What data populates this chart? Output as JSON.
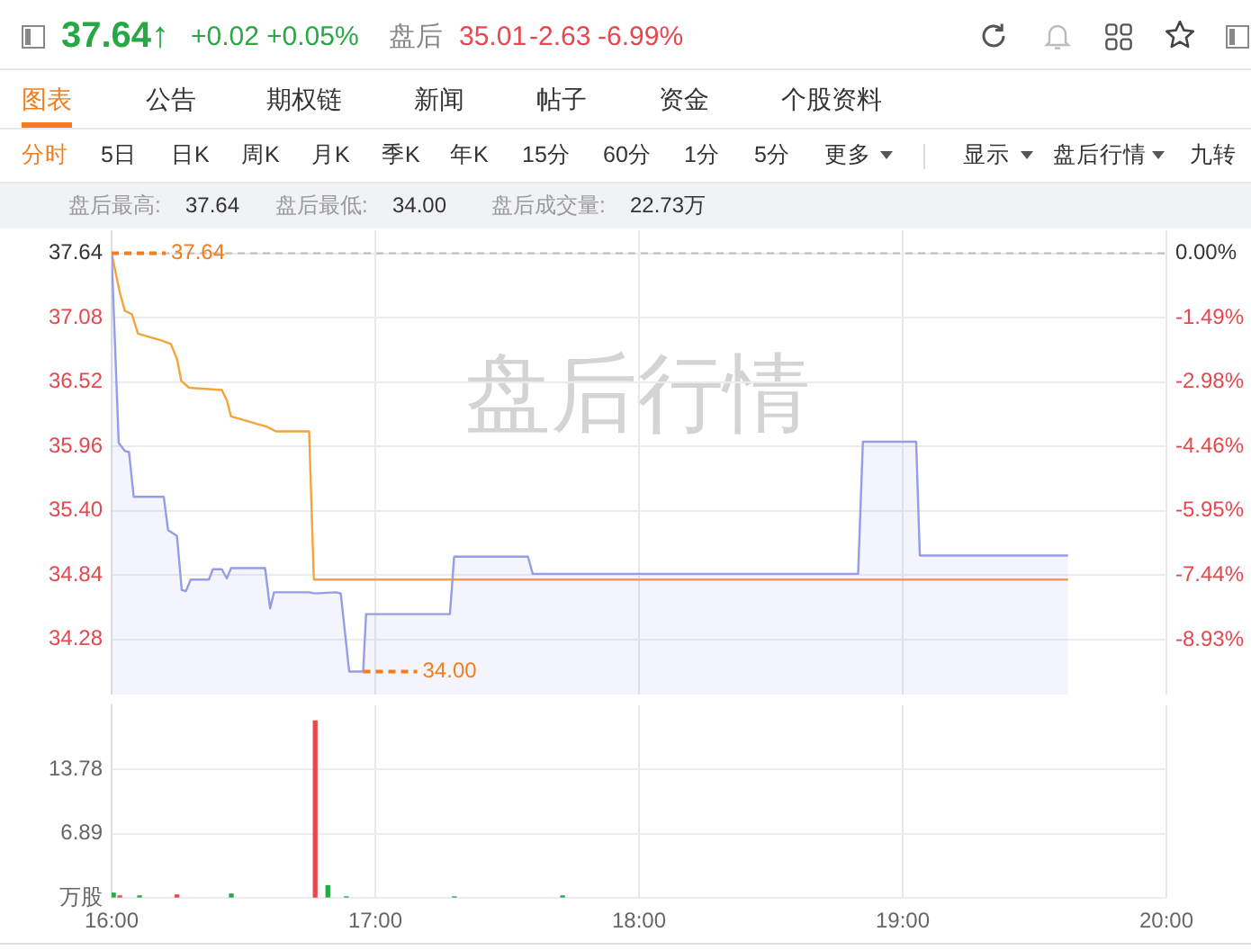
{
  "chart_data": [
    {
      "type": "line",
      "annotations": [
        "37.64↑",
        "+0.02",
        "+0.05%",
        "盘后",
        "35.01",
        "-2.63",
        "-6.99%",
        "图表",
        "公告",
        "期权链",
        "新闻",
        "帖子",
        "资金",
        "个股资料",
        "分时",
        "5日",
        "日K",
        "周K",
        "月K",
        "季K",
        "年K",
        "15分",
        "60分",
        "1分",
        "5分",
        "更多",
        "显示",
        "盘后行情",
        "九转",
        "盘后最高:",
        "37.64",
        "盘后最低:",
        "34.00",
        "盘后成交量:",
        "22.73万",
        "盘后行情",
        {
          "text": "37.64",
          "x": 16,
          "y": 37.64
        },
        {
          "text": "34.00",
          "x": 16.954,
          "y": 34.0
        }
      ],
      "xlim": [
        16,
        20
      ],
      "xticks": [
        16,
        17,
        18,
        19,
        20
      ],
      "tick_labels": "y",
      "ylim": [
        33.8,
        37.84
      ],
      "yticks": [
        37.64,
        37.08,
        36.52,
        35.96,
        {
          "value": 35.4,
          "label": "35.40"
        },
        34.84,
        34.28
      ],
      "y2lim": [
        -10.2,
        0.53
      ],
      "y2ticks": [
        {
          "value": 0,
          "label": "0.00%"
        },
        {
          "value": -1.49,
          "label": "-1.49%"
        },
        {
          "value": -2.98,
          "label": "-2.98%"
        },
        {
          "value": -4.46,
          "label": "-4.46%"
        },
        {
          "value": -5.95,
          "label": "-5.95%"
        },
        {
          "value": -7.44,
          "label": "-7.44%"
        },
        {
          "value": -8.93,
          "label": "-8.93%"
        }
      ],
      "grid": true,
      "ref_lines": [
        {
          "axis": "y",
          "value": 37.64,
          "color": "#bbbbbb",
          "line_style": "dashed"
        }
      ],
      "series": [
        {
          "type": "area",
          "color": "#959de6",
          "x": [
            16,
            16.027,
            16.05,
            16.066,
            16.084,
            16.198,
            16.214,
            16.248,
            16.266,
            16.282,
            16.3,
            16.369,
            16.384,
            16.418,
            16.437,
            16.453,
            16.582,
            16.601,
            16.616,
            16.749,
            16.771,
            16.851,
            16.869,
            16.901,
            16.954,
            16.965,
            17.283,
            17.299,
            17.579,
            17.597,
            18.831,
            18.849,
            19.051,
            19.065,
            19.627
          ],
          "values": [
            37.64,
            35.99,
            35.92,
            35.91,
            35.52,
            35.52,
            35.23,
            35.18,
            34.71,
            34.7,
            34.8,
            34.8,
            34.89,
            34.89,
            34.81,
            34.9,
            34.9,
            34.55,
            34.69,
            34.69,
            34.68,
            34.69,
            34.68,
            34.0,
            34.0,
            34.5,
            34.5,
            35.0,
            35.0,
            34.85,
            34.85,
            36.0,
            36.0,
            35.01,
            35.01
          ]
        },
        {
          "type": "line",
          "color": "#f5a33c",
          "x": [
            16,
            16.032,
            16.05,
            16.077,
            16.1,
            16.191,
            16.225,
            16.248,
            16.264,
            16.294,
            16.418,
            16.437,
            16.453,
            16.589,
            16.623,
            16.749,
            16.767,
            19.627
          ],
          "values": [
            37.64,
            37.29,
            37.14,
            37.11,
            36.94,
            36.88,
            36.85,
            36.72,
            36.53,
            36.47,
            36.45,
            36.36,
            36.22,
            36.13,
            36.09,
            36.09,
            34.8,
            34.8
          ]
        }
      ]
    },
    {
      "type": "bar",
      "x": [
        16.007,
        16.031,
        16.106,
        16.248,
        16.454,
        16.772,
        16.82,
        16.89,
        17.3,
        17.71
      ],
      "values": [
        0.5,
        0.2,
        0.2,
        0.3,
        0.4,
        19.0,
        1.3,
        0.1,
        0.1,
        0.2
      ],
      "colors": [
        "#27a844",
        "#e5484d",
        "#27a844",
        "#e5484d",
        "#27a844",
        "#e5484d",
        "#27a844",
        "#27a844",
        "#27a844",
        "#27a844"
      ],
      "xlim": [
        16,
        20
      ],
      "xticks": [
        {
          "value": 16,
          "label": "16:00"
        },
        {
          "value": 17,
          "label": "17:00"
        },
        {
          "value": 18,
          "label": "18:00"
        },
        {
          "value": 19,
          "label": "19:00"
        },
        {
          "value": 20,
          "label": "20:00"
        }
      ],
      "ylim": [
        0,
        20.67
      ],
      "yticks": [
        {
          "value": 0,
          "label": "万股"
        },
        6.89,
        13.78
      ],
      "grid": true
    }
  ]
}
